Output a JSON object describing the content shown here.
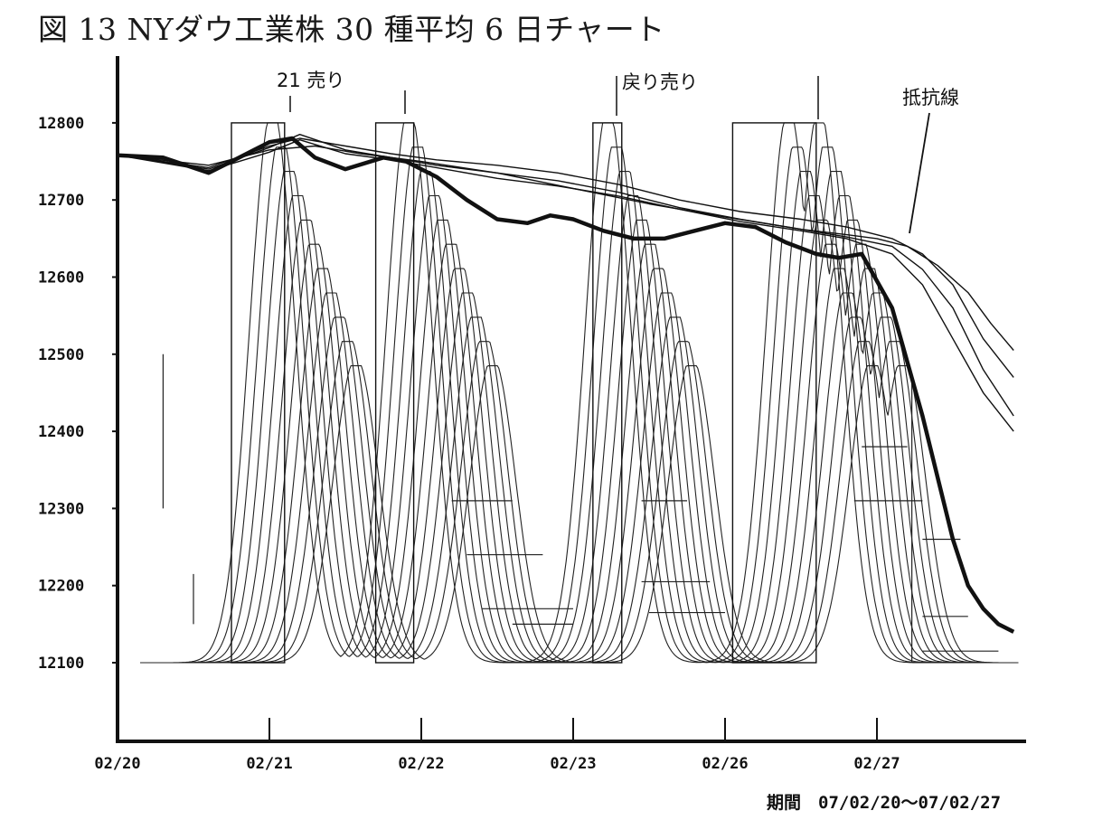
{
  "title": "図 13 NYダウ工業株 30 種平均 6 日チャート",
  "period_label": "期間　07/02/20〜07/02/27",
  "annotations": {
    "sell_21": "21 売り",
    "return_sell": "戻り売り",
    "resistance_line": "抵抗線"
  },
  "chart_data": {
    "type": "line",
    "title": "図 13 NYダウ工業株 30 種平均 6 日チャート",
    "xlabel": "期間　07/02/20〜07/02/27",
    "ylabel": "",
    "x_ticks": [
      "02/20",
      "02/21",
      "02/22",
      "02/23",
      "02/26",
      "02/27"
    ],
    "y_ticks": [
      12100,
      12200,
      12300,
      12400,
      12500,
      12600,
      12700,
      12800
    ],
    "ylim": [
      12000,
      12850
    ],
    "xlim": [
      0,
      5.9
    ],
    "grid": false,
    "series": [
      {
        "style": "bold",
        "x": [
          0,
          0.3,
          0.6,
          0.75,
          0.9,
          1.0,
          1.15,
          1.3,
          1.5,
          1.75,
          1.9,
          2.1,
          2.3,
          2.5,
          2.7,
          2.85,
          3.0,
          3.2,
          3.4,
          3.6,
          3.8,
          4.0,
          4.2,
          4.4,
          4.6,
          4.75,
          4.9,
          5.1,
          5.3,
          5.4,
          5.5,
          5.6,
          5.7,
          5.8,
          5.9
        ],
        "values": [
          12758,
          12755,
          12735,
          12750,
          12765,
          12775,
          12780,
          12755,
          12740,
          12755,
          12750,
          12730,
          12700,
          12675,
          12670,
          12680,
          12675,
          12660,
          12650,
          12650,
          12660,
          12670,
          12665,
          12645,
          12630,
          12625,
          12630,
          12560,
          12420,
          12340,
          12260,
          12200,
          12170,
          12150,
          12140
        ]
      },
      {
        "style": "thin",
        "x": [
          0,
          0.6,
          1.0,
          1.2,
          1.5,
          1.8,
          2.1,
          2.5,
          2.9,
          3.3,
          3.7,
          4.1,
          4.5,
          4.8,
          5.1,
          5.3,
          5.5,
          5.7,
          5.9
        ],
        "values": [
          12758,
          12738,
          12762,
          12778,
          12760,
          12752,
          12742,
          12728,
          12718,
          12705,
          12688,
          12672,
          12660,
          12650,
          12630,
          12590,
          12520,
          12450,
          12400
        ]
      },
      {
        "style": "thin",
        "x": [
          0,
          0.6,
          1.0,
          1.2,
          1.5,
          1.8,
          2.1,
          2.5,
          2.9,
          3.3,
          3.7,
          4.1,
          4.5,
          4.8,
          5.1,
          5.3,
          5.5,
          5.7,
          5.9
        ],
        "values": [
          12758,
          12740,
          12768,
          12785,
          12765,
          12755,
          12745,
          12735,
          12725,
          12710,
          12690,
          12675,
          12662,
          12652,
          12640,
          12610,
          12560,
          12480,
          12420
        ]
      },
      {
        "style": "thin",
        "x": [
          0,
          0.6,
          1.0,
          1.2,
          1.5,
          1.8,
          2.1,
          2.5,
          2.9,
          3.3,
          3.7,
          4.1,
          4.5,
          4.8,
          5.1,
          5.3,
          5.5,
          5.7,
          5.9
        ],
        "values": [
          12758,
          12742,
          12770,
          12780,
          12770,
          12760,
          12752,
          12745,
          12735,
          12720,
          12700,
          12685,
          12675,
          12665,
          12650,
          12630,
          12590,
          12520,
          12470
        ]
      },
      {
        "style": "thin",
        "x": [
          0,
          0.6,
          1.0,
          1.3,
          1.6,
          2.0,
          2.5,
          3.0,
          3.5,
          4.0,
          4.5,
          4.8,
          5.0,
          5.2,
          5.4,
          5.6,
          5.75,
          5.9
        ],
        "values": [
          12758,
          12745,
          12765,
          12770,
          12760,
          12750,
          12735,
          12715,
          12695,
          12678,
          12662,
          12655,
          12650,
          12640,
          12615,
          12580,
          12540,
          12505
        ]
      }
    ]
  }
}
